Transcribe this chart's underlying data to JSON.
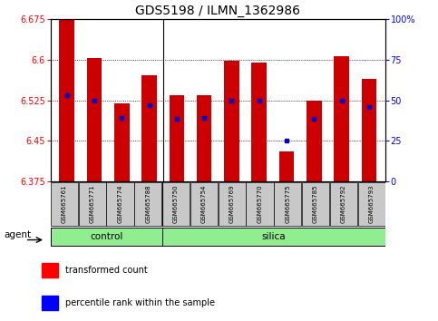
{
  "title": "GDS5198 / ILMN_1362986",
  "samples": [
    "GSM665761",
    "GSM665771",
    "GSM665774",
    "GSM665788",
    "GSM665750",
    "GSM665754",
    "GSM665769",
    "GSM665770",
    "GSM665775",
    "GSM665785",
    "GSM665792",
    "GSM665793"
  ],
  "bar_tops": [
    6.675,
    6.603,
    6.519,
    6.572,
    6.535,
    6.534,
    6.599,
    6.595,
    6.43,
    6.525,
    6.606,
    6.565
  ],
  "bar_bottom": 6.375,
  "blue_y": [
    6.535,
    6.525,
    6.493,
    6.516,
    6.49,
    6.492,
    6.525,
    6.525,
    6.45,
    6.49,
    6.525,
    6.512
  ],
  "ylim": [
    6.375,
    6.675
  ],
  "y_ticks": [
    6.375,
    6.45,
    6.525,
    6.6,
    6.675
  ],
  "y_tick_labels": [
    "6.375",
    "6.45",
    "6.525",
    "6.6",
    "6.675"
  ],
  "right_yticks": [
    0,
    25,
    50,
    75,
    100
  ],
  "right_ytick_labels": [
    "0",
    "25",
    "50",
    "75",
    "100%"
  ],
  "bar_color": "#cc0000",
  "blue_color": "#0000cc",
  "bar_width": 0.55,
  "legend_red_label": "transformed count",
  "legend_blue_label": "percentile rank within the sample",
  "title_fontsize": 10,
  "tick_fontsize": 7,
  "sample_fontsize": 5,
  "group_fontsize": 7.5,
  "agent_fontsize": 7.5,
  "legend_fontsize": 7,
  "green_color": "#90ee90",
  "gray_color": "#c8c8c8",
  "n_control": 4,
  "n_samples": 12
}
